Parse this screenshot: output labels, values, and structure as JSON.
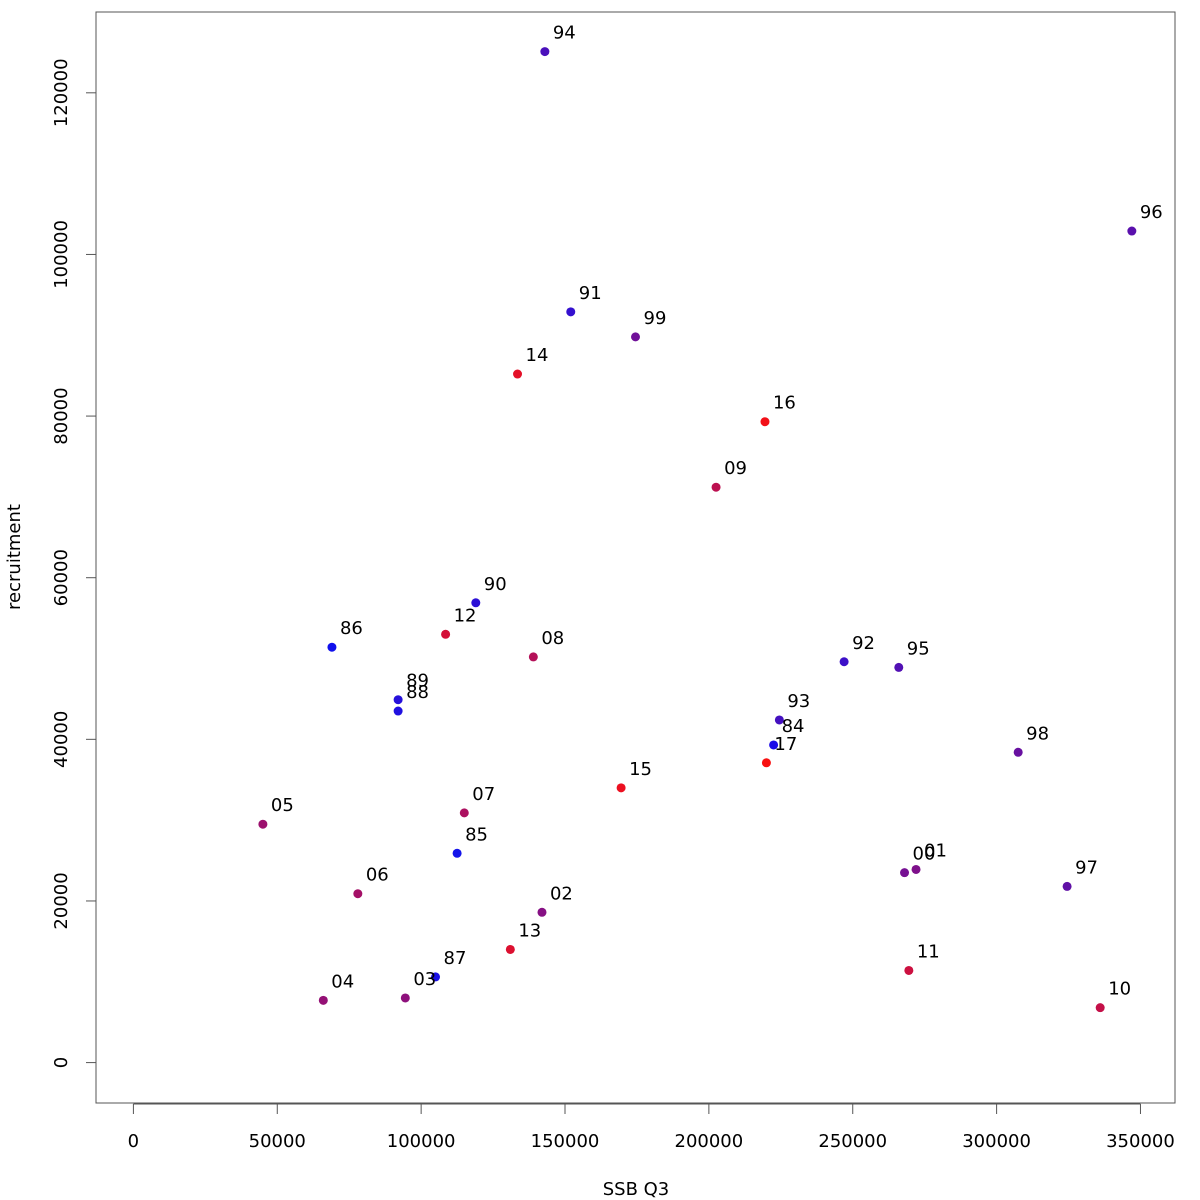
{
  "chart_data": {
    "type": "scatter",
    "title": "",
    "xlabel": "SSB Q3",
    "ylabel": "recruitment",
    "xlim": [
      -13000,
      362000
    ],
    "ylim": [
      -5000,
      130000
    ],
    "xticks": [
      0,
      50000,
      100000,
      150000,
      200000,
      250000,
      300000,
      350000
    ],
    "yticks": [
      0,
      20000,
      40000,
      60000,
      80000,
      100000,
      120000
    ],
    "grid": false,
    "legend": "none",
    "color_scale": {
      "early": "#0000ff",
      "late": "#ff0000"
    },
    "points": [
      {
        "label": "84",
        "x": 222500,
        "y": 39300,
        "color": "#1a0ae8"
      },
      {
        "label": "85",
        "x": 112500,
        "y": 25900,
        "color": "#1414ea"
      },
      {
        "label": "86",
        "x": 69000,
        "y": 51400,
        "color": "#1010ec"
      },
      {
        "label": "87",
        "x": 105000,
        "y": 10600,
        "color": "#1a10e6"
      },
      {
        "label": "88",
        "x": 92000,
        "y": 43500,
        "color": "#2010e0"
      },
      {
        "label": "89",
        "x": 92000,
        "y": 44900,
        "color": "#2610db"
      },
      {
        "label": "90",
        "x": 119000,
        "y": 56900,
        "color": "#2c10d6"
      },
      {
        "label": "91",
        "x": 152000,
        "y": 92900,
        "color": "#3410cf"
      },
      {
        "label": "92",
        "x": 247000,
        "y": 49600,
        "color": "#3c10c8"
      },
      {
        "label": "93",
        "x": 224500,
        "y": 42400,
        "color": "#4410c0"
      },
      {
        "label": "94",
        "x": 143000,
        "y": 125100,
        "color": "#4a10bb"
      },
      {
        "label": "95",
        "x": 266000,
        "y": 48900,
        "color": "#5210b4"
      },
      {
        "label": "96",
        "x": 347000,
        "y": 102900,
        "color": "#5a10ad"
      },
      {
        "label": "97",
        "x": 324500,
        "y": 21800,
        "color": "#6010a6"
      },
      {
        "label": "98",
        "x": 307500,
        "y": 38400,
        "color": "#6810a0"
      },
      {
        "label": "99",
        "x": 174500,
        "y": 89800,
        "color": "#701099"
      },
      {
        "label": "00",
        "x": 268000,
        "y": 23500,
        "color": "#761093"
      },
      {
        "label": "01",
        "x": 272000,
        "y": 23900,
        "color": "#7e108b"
      },
      {
        "label": "02",
        "x": 142000,
        "y": 18600,
        "color": "#861084"
      },
      {
        "label": "03",
        "x": 94500,
        "y": 8000,
        "color": "#8e107c"
      },
      {
        "label": "04",
        "x": 66000,
        "y": 7700,
        "color": "#941075"
      },
      {
        "label": "05",
        "x": 45000,
        "y": 29500,
        "color": "#9c106e"
      },
      {
        "label": "06",
        "x": 78000,
        "y": 20900,
        "color": "#a41067"
      },
      {
        "label": "07",
        "x": 115000,
        "y": 30900,
        "color": "#ac1060"
      },
      {
        "label": "08",
        "x": 139000,
        "y": 50200,
        "color": "#b41058"
      },
      {
        "label": "09",
        "x": 202500,
        "y": 71200,
        "color": "#bc1050"
      },
      {
        "label": "10",
        "x": 336000,
        "y": 6800,
        "color": "#c41048"
      },
      {
        "label": "11",
        "x": 269500,
        "y": 11400,
        "color": "#cc1040"
      },
      {
        "label": "12",
        "x": 108500,
        "y": 53000,
        "color": "#d41038"
      },
      {
        "label": "13",
        "x": 131000,
        "y": 14000,
        "color": "#dc1030"
      },
      {
        "label": "14",
        "x": 133500,
        "y": 85200,
        "color": "#e41028"
      },
      {
        "label": "15",
        "x": 169500,
        "y": 34000,
        "color": "#ec1020"
      },
      {
        "label": "16",
        "x": 219500,
        "y": 79300,
        "color": "#f21018"
      },
      {
        "label": "17",
        "x": 220000,
        "y": 37100,
        "color": "#f81010"
      }
    ]
  }
}
